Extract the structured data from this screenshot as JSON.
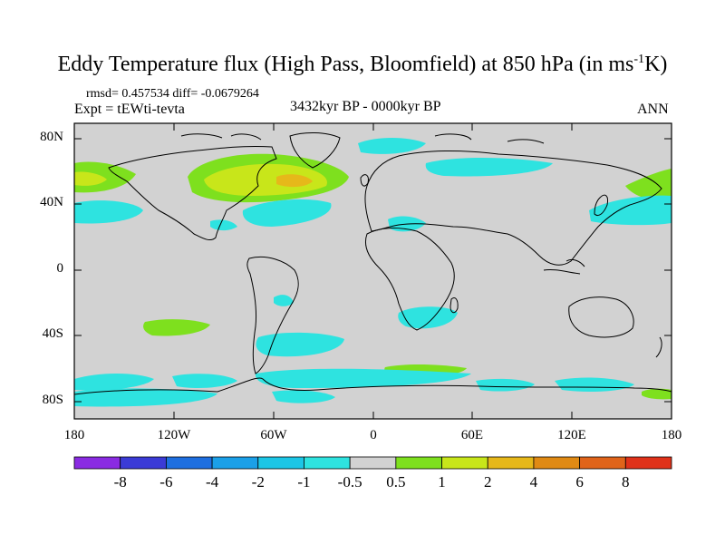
{
  "title": {
    "main": "Eddy Temperature flux (High Pass, Bloomfield) at 850 hPa (in ms",
    "superscript": "-1",
    "tail": "K)"
  },
  "stats": "rmsd= 0.457534 diff= -0.0679264",
  "experiment": "Expt = tEWti-tevta",
  "period": "3432kyr BP - 0000kyr BP",
  "season": "ANN",
  "axes": {
    "y_ticks": [
      "80N",
      "40N",
      "0",
      "40S",
      "80S"
    ],
    "x_ticks": [
      "180",
      "120W",
      "60W",
      "0",
      "60E",
      "120E",
      "180"
    ]
  },
  "colorbar": {
    "labels": [
      "-8",
      "-6",
      "-4",
      "-2",
      "-1",
      "-0.5",
      "0.5",
      "1",
      "2",
      "4",
      "6",
      "8"
    ],
    "colors": [
      "#8a2be2",
      "#3b3bd6",
      "#1e6fe0",
      "#1ba0e8",
      "#1cc6e6",
      "#2ee3e0",
      "#d2d2d2",
      "#7ee01e",
      "#c8e61a",
      "#e6b81a",
      "#e08a14",
      "#e0641a",
      "#e0321a"
    ]
  },
  "map_colors": {
    "ocean_land_background": "#d2d2d2",
    "coastline": "#000000"
  }
}
